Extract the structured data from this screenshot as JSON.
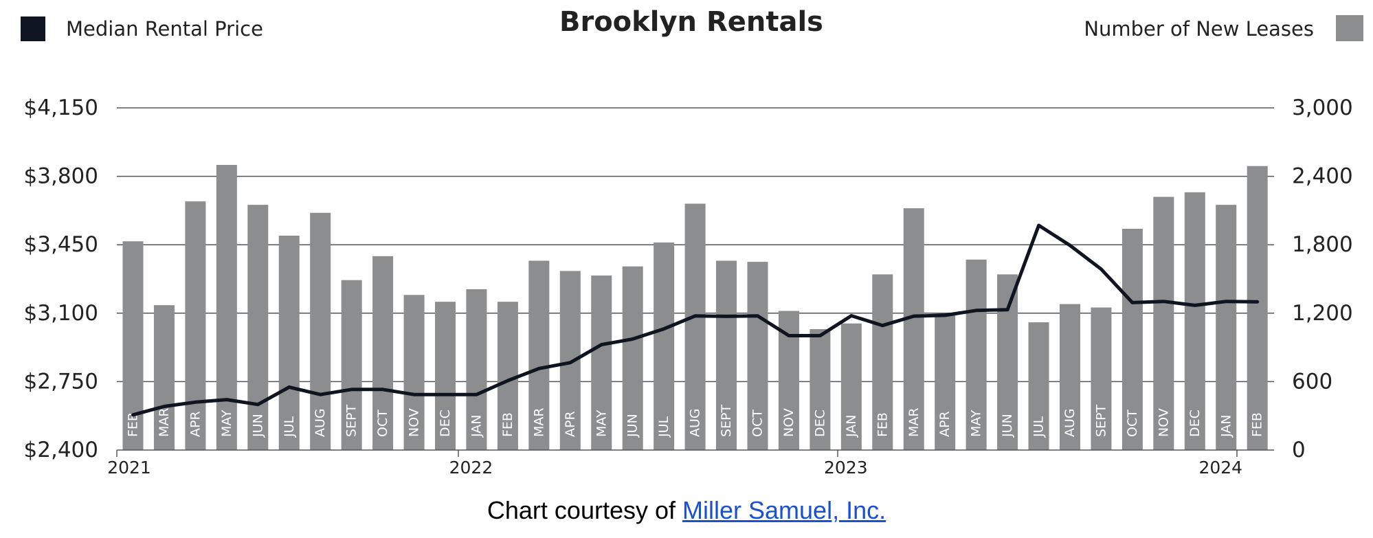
{
  "chart_data": {
    "type": "bar+line",
    "title": "Brooklyn Rentals",
    "legend": {
      "left": "Median Rental Price",
      "right": "Number of New Leases"
    },
    "colors": {
      "line": "#0f1421",
      "bars": "#8b8d8e",
      "grid": "#555555",
      "text": "#222222"
    },
    "y_left": {
      "ticks": [
        "$4,150",
        "$3,800",
        "$3,450",
        "$3,100",
        "$2,750",
        "$2,400"
      ],
      "range": [
        2400,
        4150
      ]
    },
    "y_right": {
      "ticks": [
        "3,000",
        "2,400",
        "1,800",
        "1,200",
        "600",
        "0"
      ],
      "range": [
        0,
        3000
      ]
    },
    "categories": [
      "FEB",
      "MAR",
      "APR",
      "MAY",
      "JUN",
      "JUL",
      "AUG",
      "SEPT",
      "OCT",
      "NOV",
      "DEC",
      "JAN",
      "FEB",
      "MAR",
      "APR",
      "MAY",
      "JUN",
      "JUL",
      "AUG",
      "SEPT",
      "OCT",
      "NOV",
      "DEC",
      "JAN",
      "FEB",
      "MAR",
      "APR",
      "MAY",
      "JUN",
      "JUL",
      "AUG",
      "SEPT",
      "OCT",
      "NOV",
      "DEC",
      "JAN",
      "FEB"
    ],
    "year_labels": [
      {
        "label": "2021",
        "index": 0
      },
      {
        "label": "2022",
        "index": 11
      },
      {
        "label": "2023",
        "index": 23
      },
      {
        "label": "2024",
        "index": 35
      }
    ],
    "series": [
      {
        "name": "Number of New Leases",
        "type": "bar",
        "values": [
          1830,
          1270,
          2180,
          2500,
          2150,
          1880,
          2080,
          1490,
          1700,
          1360,
          1300,
          1410,
          1300,
          1660,
          1570,
          1530,
          1610,
          1820,
          2160,
          1660,
          1650,
          1220,
          1060,
          1110,
          1540,
          2120,
          1190,
          1670,
          1540,
          1120,
          1280,
          1250,
          1940,
          2220,
          2260,
          2150,
          2490
        ]
      },
      {
        "name": "Median Rental Price",
        "type": "line",
        "values": [
          2580,
          2623,
          2645,
          2658,
          2633,
          2722,
          2684,
          2710,
          2710,
          2684,
          2684,
          2684,
          2755,
          2817,
          2847,
          2939,
          2968,
          3020,
          3086,
          3084,
          3086,
          2985,
          2985,
          3087,
          3037,
          3085,
          3089,
          3114,
          3118,
          3549,
          3447,
          3325,
          3154,
          3160,
          3140,
          3160,
          3158
        ]
      }
    ],
    "grid": true
  },
  "footer": {
    "prefix": "Chart courtesy of ",
    "link_text": "Miller Samuel, Inc."
  }
}
